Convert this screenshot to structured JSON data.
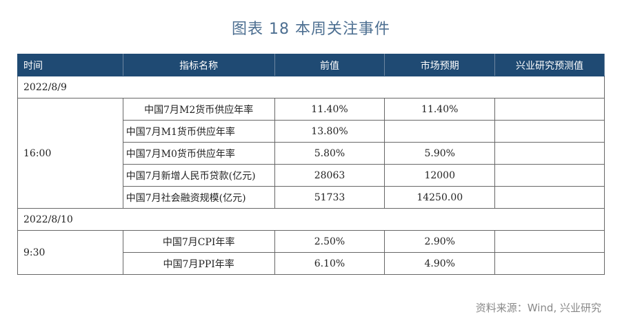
{
  "title": "图表 18  本周关注事件",
  "headers": [
    "时间",
    "指标名称",
    "前值",
    "市场预期",
    "兴业研究预测值"
  ],
  "groups": [
    {
      "date": "2022/8/9",
      "time": "16:00",
      "rows": [
        {
          "name": "中国7月M2货币供应年率",
          "prev": "11.40%",
          "expect": "11.40%",
          "forecast": ""
        },
        {
          "name": "中国7月M1货币供应年率",
          "prev": "13.80%",
          "expect": "",
          "forecast": ""
        },
        {
          "name": "中国7月M0货币供应年率",
          "prev": "5.80%",
          "expect": "5.90%",
          "forecast": ""
        },
        {
          "name": "中国7月新增人民币贷款(亿元)",
          "prev": "28063",
          "expect": "12000",
          "forecast": ""
        },
        {
          "name": "中国7月社会融资规模(亿元)",
          "prev": "51733",
          "expect": "14250.00",
          "forecast": ""
        }
      ]
    },
    {
      "date": "2022/8/10",
      "time": "9:30",
      "rows": [
        {
          "name": "中国7月CPI年率",
          "prev": "2.50%",
          "expect": "2.90%",
          "forecast": ""
        },
        {
          "name": "中国7月PPI年率",
          "prev": "6.10%",
          "expect": "4.90%",
          "forecast": ""
        }
      ]
    }
  ],
  "source": "资料来源：Wind, 兴业研究",
  "colors": {
    "header_bg": "#1f4a73",
    "title": "#4d6f91"
  }
}
